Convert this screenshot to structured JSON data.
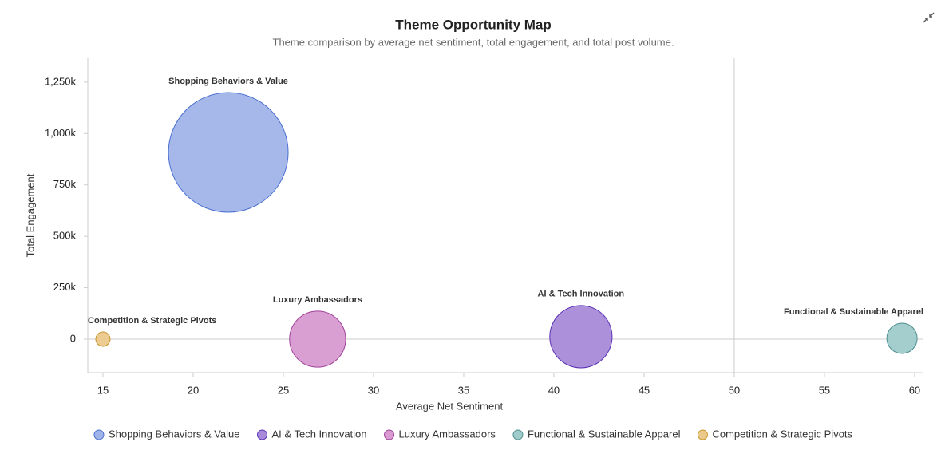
{
  "chart_data": {
    "type": "bubble",
    "title": "Theme Opportunity Map",
    "subtitle": "Theme comparison by average net sentiment, total engagement, and total post volume.",
    "x_label": "Average Net Sentiment",
    "y_label": "Total Engagement",
    "xlim": [
      14.16,
      60.49
    ],
    "xticks": [
      15,
      20,
      25,
      30,
      35,
      40,
      45,
      50,
      55,
      60
    ],
    "ylim": [
      -163000,
      1366000
    ],
    "yticks": [
      {
        "value": 0,
        "label": "0"
      },
      {
        "value": 250000,
        "label": "250k"
      },
      {
        "value": 500000,
        "label": "500k"
      },
      {
        "value": 750000,
        "label": "750k"
      },
      {
        "value": 1000000,
        "label": "1,000k"
      },
      {
        "value": 1250000,
        "label": "1,250k"
      }
    ],
    "x_reference": 50,
    "y_reference": 0,
    "legend": "bottom",
    "series": [
      {
        "name": "Shopping Behaviors & Value",
        "color": "#a0b4e8",
        "edge_color": "#4a6fd0",
        "x": 21.95,
        "y": 908000,
        "size": 5600
      },
      {
        "name": "AI & Tech Innovation",
        "color": "#a88ad8",
        "edge_color": "#5b32b5",
        "x": 41.5,
        "y": 12000,
        "size": 1520
      },
      {
        "name": "Luxury Ambassadors",
        "color": "#d89ad0",
        "edge_color": "#a0439a",
        "x": 26.9,
        "y": 0,
        "size": 1230
      },
      {
        "name": "Functional & Sustainable Apparel",
        "color": "#9fcbcb",
        "edge_color": "#4f8f90",
        "x": 59.3,
        "y": 4000,
        "size": 360
      },
      {
        "name": "Competition & Strategic Pivots",
        "color": "#ebc98a",
        "edge_color": "#c8962e",
        "x": 15,
        "y": 0,
        "size": 80
      }
    ]
  }
}
